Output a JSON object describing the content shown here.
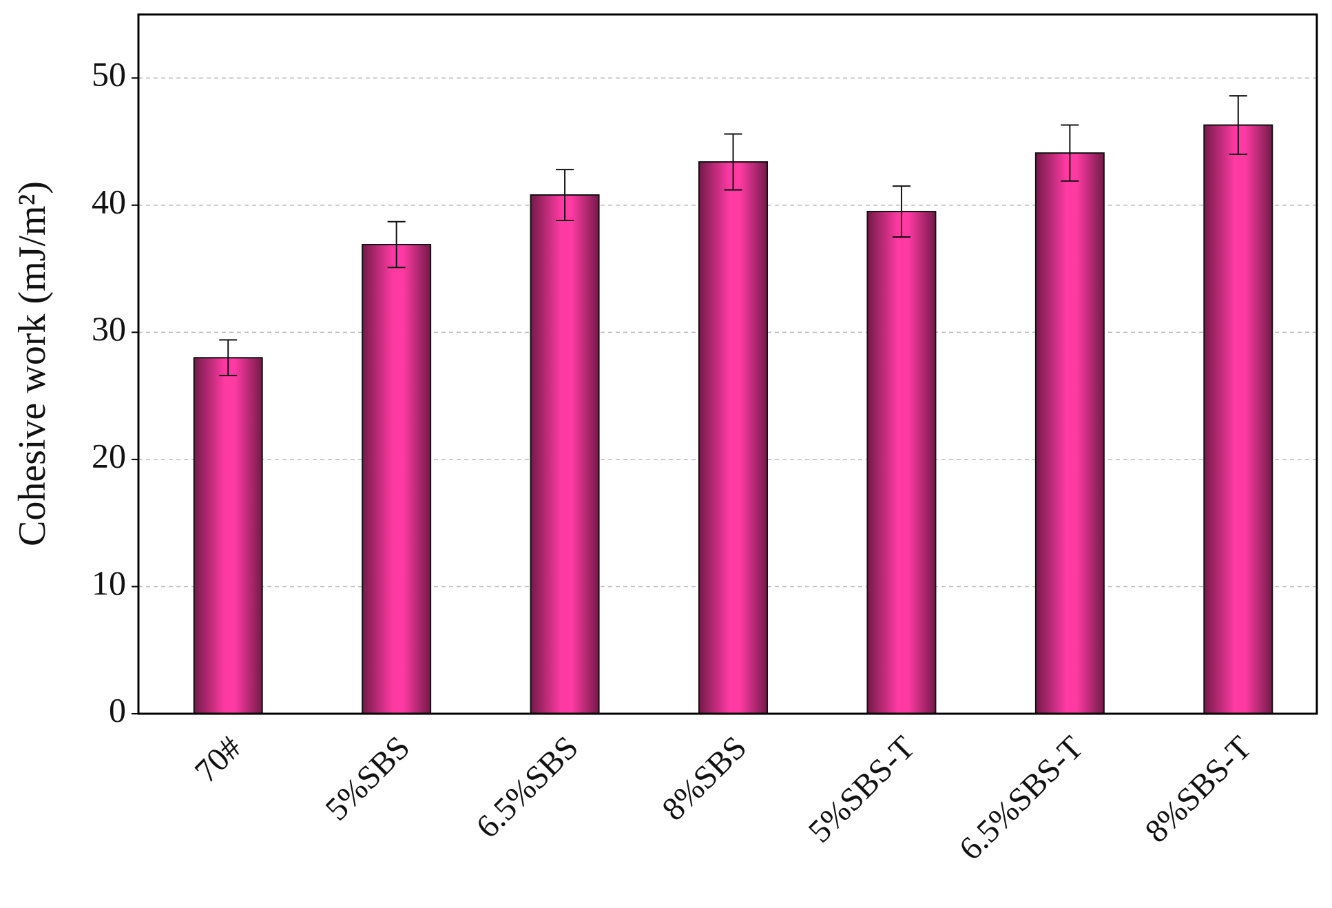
{
  "chart_data": {
    "type": "bar",
    "y_label": "Cohesive work (mJ/m²)",
    "categories": [
      "70#",
      "5%SBS",
      "6.5%SBS",
      "8%SBS",
      "5%SBS-T",
      "6.5%SBS-T",
      "8%SBS-T"
    ],
    "values": [
      28.0,
      36.9,
      40.8,
      43.4,
      39.5,
      44.1,
      46.3
    ],
    "errors": [
      1.4,
      1.8,
      2.0,
      2.2,
      2.0,
      2.2,
      2.3
    ],
    "color": "#ff3aa3",
    "ylim": [
      0,
      55
    ],
    "yticks": [
      0,
      10,
      20,
      30,
      40,
      50
    ],
    "grid": true
  }
}
